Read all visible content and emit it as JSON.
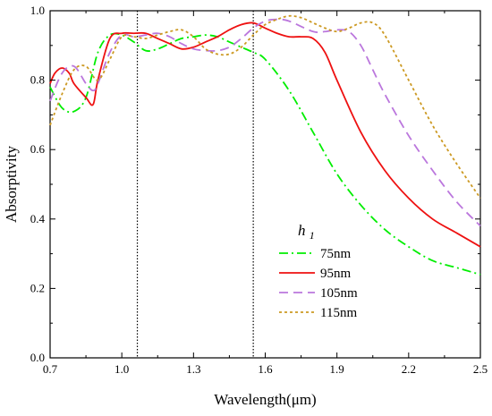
{
  "chart_data": {
    "type": "line",
    "xlabel": "Wavelength(μm)",
    "ylabel": "Absorptivity",
    "xlim": [
      0.7,
      2.5
    ],
    "ylim": [
      0.0,
      1.0
    ],
    "xticks": [
      "0.7",
      "1.0",
      "1.3",
      "1.6",
      "1.9",
      "2.2",
      "2.5"
    ],
    "yticks": [
      "0.0",
      "0.2",
      "0.4",
      "0.6",
      "0.8",
      "1.0"
    ],
    "grid": false,
    "legend": {
      "title_main": "h",
      "title_sub": "1",
      "placement": "bottom-right"
    },
    "reference_lines": [
      1.065,
      1.55
    ],
    "series": [
      {
        "name": "75nm",
        "color": "#00ee00",
        "dash": "dashdot",
        "x": [
          0.7,
          0.75,
          0.8,
          0.85,
          0.9,
          0.95,
          1.0,
          1.05,
          1.1,
          1.15,
          1.2,
          1.25,
          1.3,
          1.35,
          1.4,
          1.45,
          1.5,
          1.55,
          1.6,
          1.7,
          1.8,
          1.9,
          2.0,
          2.1,
          2.2,
          2.3,
          2.4,
          2.5
        ],
        "y": [
          0.78,
          0.72,
          0.71,
          0.75,
          0.88,
          0.93,
          0.93,
          0.91,
          0.885,
          0.89,
          0.905,
          0.92,
          0.925,
          0.93,
          0.925,
          0.91,
          0.895,
          0.88,
          0.86,
          0.77,
          0.65,
          0.53,
          0.44,
          0.37,
          0.32,
          0.28,
          0.26,
          0.24
        ]
      },
      {
        "name": "95nm",
        "color": "#ee1111",
        "dash": "solid",
        "x": [
          0.7,
          0.72,
          0.75,
          0.78,
          0.8,
          0.85,
          0.88,
          0.9,
          0.95,
          1.0,
          1.05,
          1.1,
          1.15,
          1.2,
          1.25,
          1.3,
          1.35,
          1.4,
          1.45,
          1.5,
          1.55,
          1.6,
          1.65,
          1.7,
          1.75,
          1.8,
          1.85,
          1.9,
          2.0,
          2.1,
          2.2,
          2.3,
          2.4,
          2.5
        ],
        "y": [
          0.79,
          0.82,
          0.835,
          0.82,
          0.79,
          0.75,
          0.73,
          0.8,
          0.92,
          0.935,
          0.935,
          0.935,
          0.92,
          0.905,
          0.89,
          0.895,
          0.91,
          0.925,
          0.945,
          0.96,
          0.965,
          0.95,
          0.935,
          0.925,
          0.925,
          0.92,
          0.88,
          0.8,
          0.65,
          0.54,
          0.46,
          0.4,
          0.36,
          0.32
        ]
      },
      {
        "name": "105nm",
        "color": "#bb77dd",
        "dash": "longdash",
        "x": [
          0.7,
          0.75,
          0.8,
          0.85,
          0.88,
          0.9,
          0.95,
          1.0,
          1.05,
          1.1,
          1.15,
          1.2,
          1.25,
          1.3,
          1.35,
          1.4,
          1.45,
          1.5,
          1.55,
          1.6,
          1.65,
          1.7,
          1.8,
          1.85,
          1.9,
          1.95,
          2.0,
          2.05,
          2.1,
          2.2,
          2.3,
          2.4,
          2.5
        ],
        "y": [
          0.74,
          0.82,
          0.84,
          0.79,
          0.77,
          0.79,
          0.88,
          0.93,
          0.925,
          0.93,
          0.935,
          0.925,
          0.905,
          0.89,
          0.885,
          0.885,
          0.895,
          0.92,
          0.95,
          0.97,
          0.975,
          0.97,
          0.94,
          0.94,
          0.945,
          0.94,
          0.9,
          0.83,
          0.76,
          0.64,
          0.54,
          0.45,
          0.38
        ]
      },
      {
        "name": "115nm",
        "color": "#cc9922",
        "dash": "dot",
        "x": [
          0.7,
          0.75,
          0.8,
          0.85,
          0.9,
          0.95,
          1.0,
          1.05,
          1.1,
          1.15,
          1.2,
          1.25,
          1.3,
          1.35,
          1.4,
          1.45,
          1.5,
          1.55,
          1.6,
          1.65,
          1.7,
          1.75,
          1.8,
          1.85,
          1.9,
          1.95,
          2.0,
          2.05,
          2.1,
          2.2,
          2.3,
          2.4,
          2.5
        ],
        "y": [
          0.67,
          0.76,
          0.83,
          0.84,
          0.8,
          0.86,
          0.925,
          0.925,
          0.92,
          0.93,
          0.94,
          0.945,
          0.925,
          0.89,
          0.875,
          0.875,
          0.895,
          0.93,
          0.96,
          0.975,
          0.985,
          0.98,
          0.965,
          0.95,
          0.94,
          0.95,
          0.965,
          0.965,
          0.93,
          0.8,
          0.67,
          0.56,
          0.46
        ]
      }
    ]
  }
}
